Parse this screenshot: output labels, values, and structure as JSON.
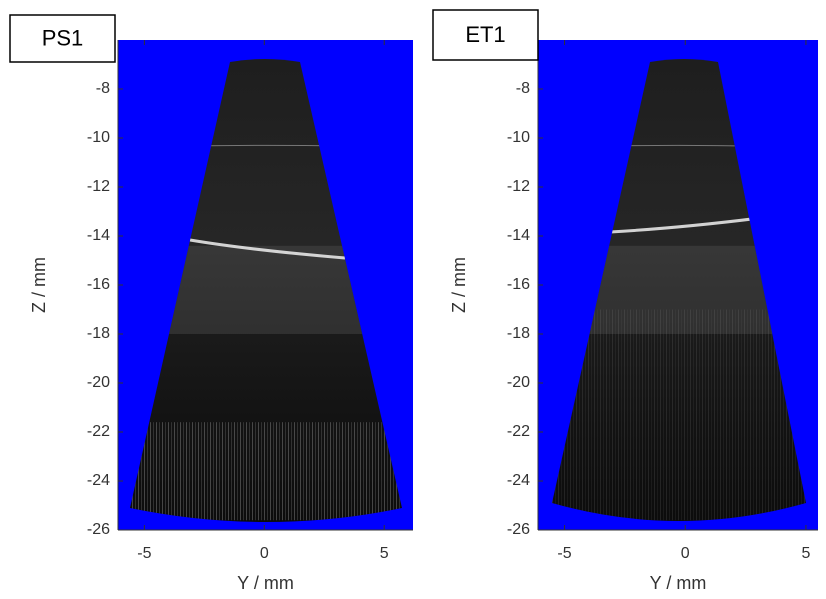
{
  "chart_data": [
    {
      "type": "image",
      "title": "PS1",
      "xlabel": "Y / mm",
      "ylabel": "Z / mm",
      "xlim": [
        -6.1,
        6.2
      ],
      "ylim": [
        -26,
        -6
      ],
      "xticks": [
        -5,
        0,
        5
      ],
      "yticks": [
        -26,
        -24,
        -22,
        -20,
        -18,
        -16,
        -14,
        -12,
        -10,
        -8
      ]
    },
    {
      "type": "image",
      "title": "ET1",
      "xlabel": "Y / mm",
      "ylabel": "Z / mm",
      "xlim": [
        -6.1,
        5.5
      ],
      "ylim": [
        -26,
        -6
      ],
      "xticks": [
        -5,
        0,
        5
      ],
      "yticks": [
        -26,
        -24,
        -22,
        -20,
        -18,
        -16,
        -14,
        -12,
        -10,
        -8
      ]
    }
  ]
}
